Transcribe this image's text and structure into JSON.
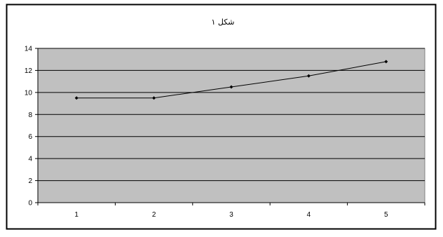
{
  "chart_data": {
    "type": "line",
    "title": "شکل ۱",
    "x": [
      1,
      2,
      3,
      4,
      5
    ],
    "x_tick_labels": [
      "1",
      "2",
      "3",
      "4",
      "5"
    ],
    "series": [
      {
        "values": [
          9.5,
          9.5,
          10.5,
          11.5,
          12.8
        ]
      }
    ],
    "ylim": [
      0,
      14
    ],
    "y_ticks": [
      0,
      2,
      4,
      6,
      8,
      10,
      12,
      14
    ],
    "y_tick_labels": [
      "0",
      "2",
      "4",
      "6",
      "8",
      "10",
      "12",
      "14"
    ],
    "xlabel": "",
    "ylabel": "",
    "grid": true,
    "legend": "none",
    "colors": {
      "plot_background": "#c0c0c0",
      "gridline": "#000000",
      "line": "#000000",
      "marker": "#000000",
      "frame": "#000000"
    }
  }
}
